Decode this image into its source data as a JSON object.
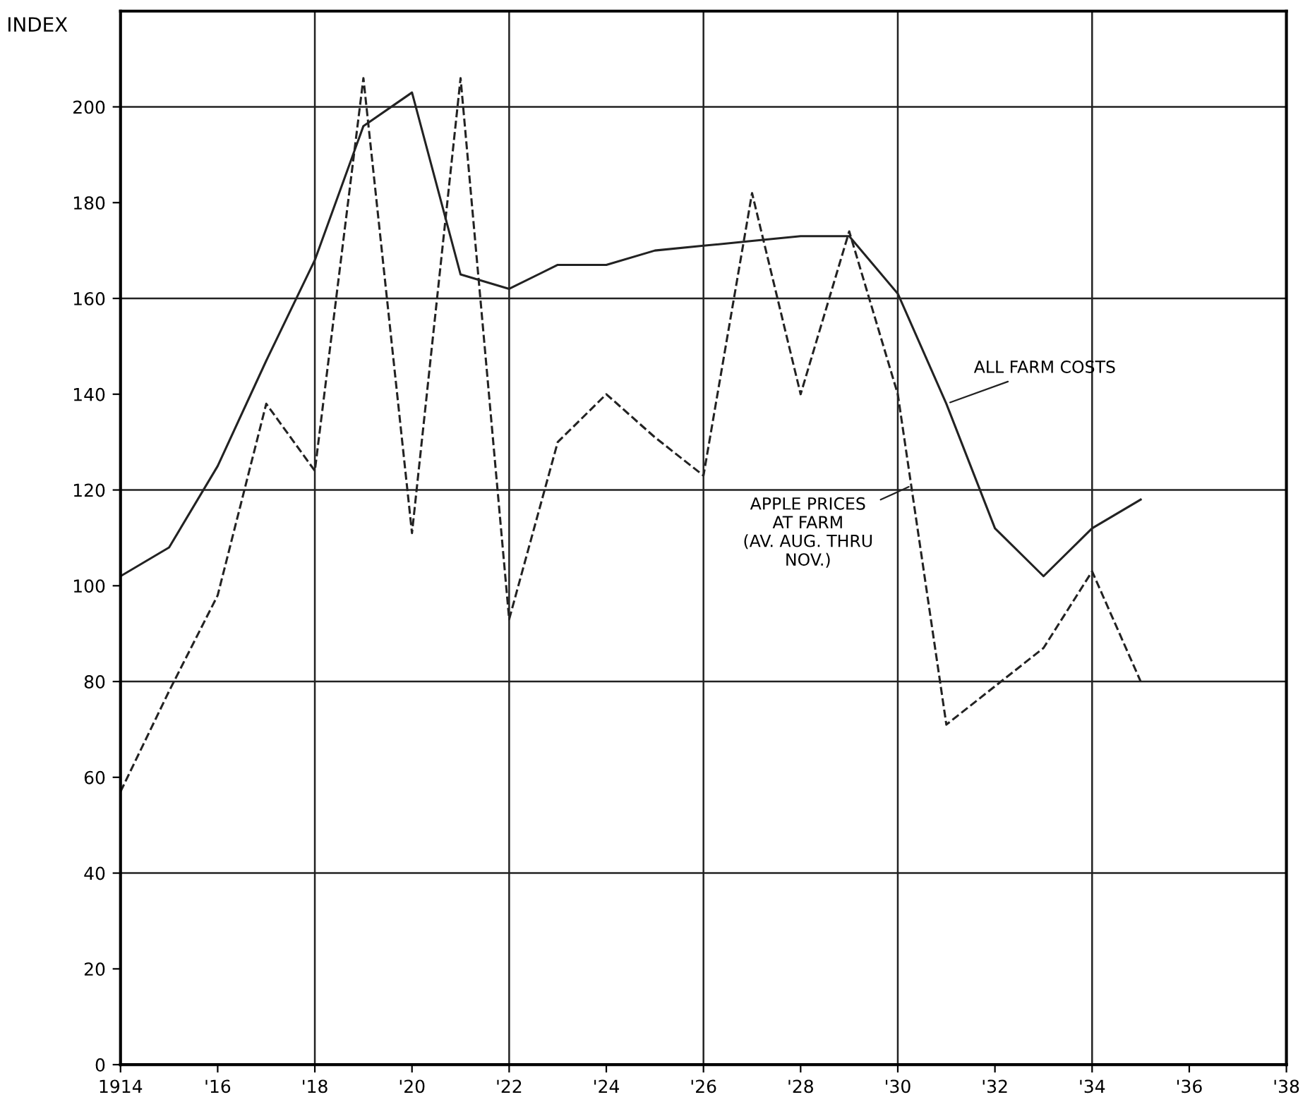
{
  "chart_data": {
    "type": "line",
    "ylabel": "INDEX",
    "x": [
      1914,
      1915,
      1916,
      1917,
      1918,
      1919,
      1920,
      1921,
      1922,
      1923,
      1924,
      1925,
      1926,
      1927,
      1928,
      1929,
      1930,
      1931,
      1932,
      1933,
      1934,
      1935
    ],
    "series": [
      {
        "color": "#222222",
        "line_style": "solid",
        "values": [
          102,
          108,
          125,
          147,
          168,
          196,
          203,
          165,
          162,
          167,
          167,
          170,
          171,
          172,
          173,
          173,
          161,
          138,
          112,
          102,
          112,
          118
        ]
      },
      {
        "color": "#222222",
        "line_style": "dashed",
        "values": [
          57,
          78,
          98,
          138,
          124,
          206,
          111,
          206,
          93,
          130,
          140,
          131,
          123,
          182,
          140,
          174,
          140,
          71,
          79,
          87,
          103,
          80
        ]
      }
    ],
    "xlim": [
      1914,
      1938
    ],
    "ylim": [
      0,
      220
    ],
    "xticks": [
      {
        "value": 1914,
        "label": "1914"
      },
      {
        "value": 1916,
        "label": "'16"
      },
      {
        "value": 1918,
        "label": "'18"
      },
      {
        "value": 1920,
        "label": "'20"
      },
      {
        "value": 1922,
        "label": "'22"
      },
      {
        "value": 1924,
        "label": "'24"
      },
      {
        "value": 1926,
        "label": "'26"
      },
      {
        "value": 1928,
        "label": "'28"
      },
      {
        "value": 1930,
        "label": "'30"
      },
      {
        "value": 1932,
        "label": "'32"
      },
      {
        "value": 1934,
        "label": "'34"
      },
      {
        "value": 1936,
        "label": "'36"
      },
      {
        "value": 1938,
        "label": "'38"
      }
    ],
    "yticks": [
      0,
      20,
      40,
      60,
      80,
      100,
      120,
      140,
      160,
      180,
      200
    ],
    "grid": true,
    "marker": "none",
    "annotations": [
      {
        "text": "ALL FARM COSTS",
        "x": 1931,
        "y": 138
      },
      {
        "text": "APPLE PRICES\nAT FARM\n(AV. AUG. THRU\nNOV.)",
        "x": 1930.3,
        "y": 121
      }
    ]
  }
}
